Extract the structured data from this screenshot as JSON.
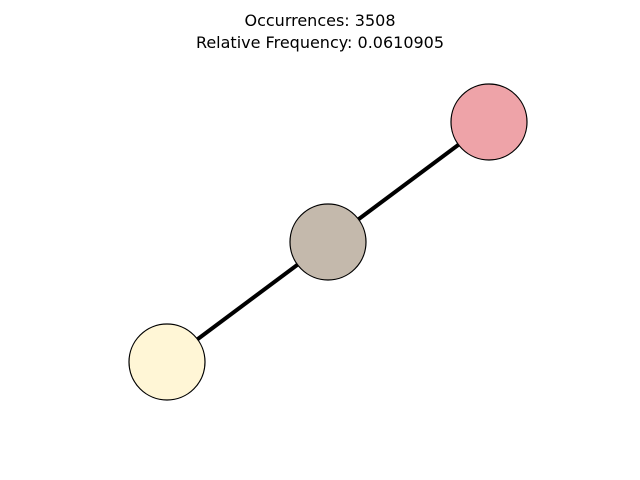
{
  "figure": {
    "occurrences_line": "Occurrences: 3508",
    "frequency_line": "Relative Frequency: 0.0610905"
  },
  "graph": {
    "nodes": [
      {
        "id": "node-top-right",
        "color": "#eea3a8"
      },
      {
        "id": "node-middle",
        "color": "#c4b9ac"
      },
      {
        "id": "node-bottom-left",
        "color": "#fff6d6"
      }
    ],
    "edges": [
      {
        "from": "node-bottom-left",
        "to": "node-middle"
      },
      {
        "from": "node-middle",
        "to": "node-top-right"
      }
    ],
    "edge_color": "#000000",
    "node_border_color": "#000000"
  }
}
